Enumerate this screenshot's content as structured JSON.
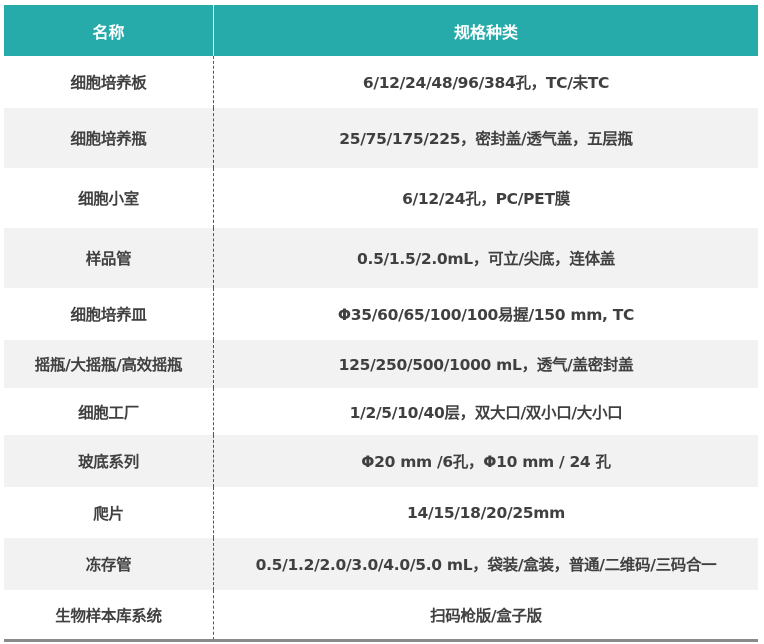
{
  "header": {
    "name": "名称",
    "spec": "规格种类"
  },
  "colors": {
    "header_bg": "#27abaa",
    "alt_row_bg": "#f2f2f2",
    "text": "#404040"
  },
  "rows": [
    {
      "name": "细胞培养板",
      "spec": "6/12/24/48/96/384孔，TC/未TC"
    },
    {
      "name": "细胞培养瓶",
      "spec": "25/75/175/225，密封盖/透气盖，五层瓶"
    },
    {
      "name": "细胞小室",
      "spec": "6/12/24孔，PC/PET膜"
    },
    {
      "name": "样品管",
      "spec": "0.5/1.5/2.0mL，可立/尖底，连体盖"
    },
    {
      "name": "细胞培养皿",
      "spec": "Φ35/60/65/100/100易握/150 mm, TC"
    },
    {
      "name": "摇瓶/大摇瓶/高效摇瓶",
      "spec": "125/250/500/1000 mL，透气/盖密封盖"
    },
    {
      "name": "细胞工厂",
      "spec": "1/2/5/10/40层，双大口/双小口/大小口"
    },
    {
      "name": "玻底系列",
      "spec": "Φ20 mm /6孔，Φ10 mm / 24 孔"
    },
    {
      "name": "爬片",
      "spec": "14/15/18/20/25mm"
    },
    {
      "name": "冻存管",
      "spec": "0.5/1.2/2.0/3.0/4.0/5.0 mL，袋装/盒装，普通/二维码/三码合一"
    },
    {
      "name": "生物样本库系统",
      "spec": "扫码枪版/盒子版"
    }
  ]
}
